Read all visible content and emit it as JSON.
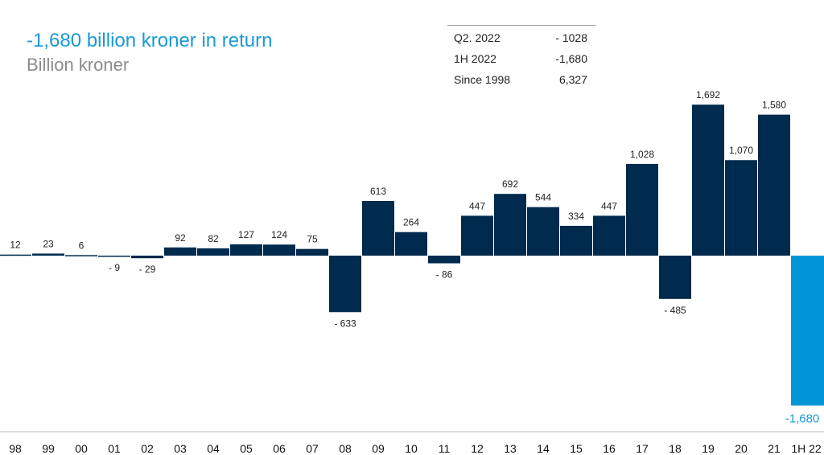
{
  "chart_data": {
    "type": "bar",
    "title": "-1,680 billion kroner in return",
    "subtitle": "Billion kroner",
    "xlabel": "",
    "ylabel": "Billion kroner",
    "ylim": [
      -1680,
      1692
    ],
    "categories": [
      "98",
      "99",
      "00",
      "01",
      "02",
      "03",
      "04",
      "05",
      "06",
      "07",
      "08",
      "09",
      "10",
      "11",
      "12",
      "13",
      "14",
      "15",
      "16",
      "17",
      "18",
      "19",
      "20",
      "21",
      "1H 22"
    ],
    "values": [
      12,
      23,
      6,
      -9,
      -29,
      92,
      82,
      127,
      124,
      75,
      -633,
      613,
      264,
      -86,
      447,
      692,
      544,
      334,
      447,
      1028,
      -485,
      1692,
      1070,
      1580,
      -1680
    ],
    "data_labels": [
      "12",
      "23",
      "6",
      "- 9",
      "- 29",
      "92",
      "82",
      "127",
      "124",
      "75",
      "- 633",
      "613",
      "264",
      "- 86",
      "447",
      "692",
      "544",
      "334",
      "447",
      "1,028",
      "- 485",
      "1,692",
      "1,070",
      "1,580",
      "-1,680"
    ],
    "colors": {
      "primary": "#002a4e",
      "highlight": "#0096d6",
      "title": "#1a9ad6",
      "subtitle": "#8c8c8c"
    }
  },
  "summary_table": [
    {
      "label": "Q2. 2022",
      "value": "- 1028"
    },
    {
      "label": "1H 2022",
      "value": "-1,680"
    },
    {
      "label": "Since 1998",
      "value": "6,327"
    }
  ]
}
